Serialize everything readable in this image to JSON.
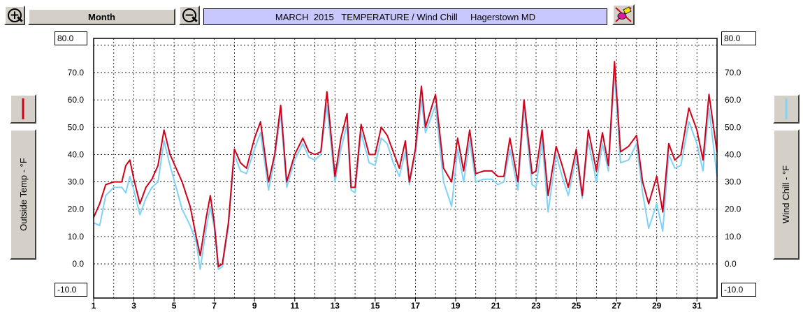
{
  "toolbar": {
    "zoom_in_icon": "zoom-in-magnifier",
    "zoom_out_icon": "zoom-out-magnifier",
    "period_label": "Month",
    "title": "MARCH  2015   TEMPERATURE / Wind Chill     Hagerstown MD",
    "title_bg": "#c8c8ff",
    "tool_icon": "eraser-pencil"
  },
  "left_axis": {
    "top_label": "80.0",
    "bottom_label": "-10.0",
    "button_label": "Outside Temp - °F",
    "color": "#d0021b"
  },
  "right_axis": {
    "top_label": "80.0",
    "bottom_label": "-10.0",
    "button_label": "Wind Chill - °F",
    "color": "#7fd3f7"
  },
  "chart_data": {
    "type": "line",
    "title": "MARCH  2015   TEMPERATURE / Wind Chill     Hagerstown MD",
    "xlabel": "",
    "ylabel": "Outside Temp - °F",
    "y2label": "Wind Chill - °F",
    "ylim": [
      -12.5,
      82.5
    ],
    "xlim": [
      1,
      32
    ],
    "grid": true,
    "y_ticks": [
      "80.0",
      "70.0",
      "60.0",
      "50.0",
      "40.0",
      "30.0",
      "20.0",
      "10.0",
      "0.0",
      "-10.0"
    ],
    "x_ticks": [
      "1",
      "3",
      "5",
      "7",
      "9",
      "11",
      "13",
      "15",
      "17",
      "19",
      "21",
      "23",
      "25",
      "27",
      "29",
      "31"
    ],
    "series": [
      {
        "name": "Outside Temp - °F",
        "color": "#d0021b",
        "x": [
          1,
          1.3,
          1.6,
          2,
          2.4,
          2.6,
          2.8,
          3,
          3.3,
          3.6,
          3.9,
          4.2,
          4.5,
          4.8,
          5.1,
          5.4,
          5.8,
          6.1,
          6.3,
          6.6,
          6.8,
          7,
          7.2,
          7.4,
          7.7,
          8,
          8.3,
          8.6,
          9,
          9.3,
          9.7,
          10,
          10.3,
          10.6,
          11,
          11.4,
          11.7,
          12,
          12.3,
          12.6,
          13,
          13.3,
          13.6,
          13.8,
          14,
          14.3,
          14.7,
          15,
          15.3,
          15.6,
          15.9,
          16.2,
          16.5,
          16.7,
          17,
          17.3,
          17.5,
          18,
          18.4,
          18.8,
          19.1,
          19.4,
          19.7,
          20,
          20.4,
          20.8,
          21.1,
          21.4,
          21.7,
          22.1,
          22.4,
          22.8,
          23,
          23.3,
          23.6,
          24,
          24.3,
          24.6,
          25,
          25.3,
          25.6,
          26,
          26.3,
          26.6,
          26.9,
          27.2,
          27.6,
          28,
          28.3,
          28.6,
          29,
          29.3,
          29.6,
          29.9,
          30.2,
          30.6,
          31,
          31.3,
          31.6,
          32
        ],
        "values": [
          17,
          22,
          29,
          30,
          30,
          36,
          38,
          31,
          22,
          28,
          31,
          36,
          49,
          40,
          35,
          30,
          21,
          10,
          3,
          17,
          25,
          15,
          -1,
          0,
          15,
          42,
          37,
          35,
          46,
          52,
          30,
          40,
          58,
          30,
          40,
          46,
          41,
          40,
          41,
          63,
          32,
          46,
          55,
          28,
          28,
          51,
          40,
          40,
          50,
          47,
          41,
          35,
          45,
          30,
          42,
          65,
          50,
          62,
          35,
          30,
          46,
          34,
          49,
          33,
          34,
          34,
          32,
          32,
          46,
          30,
          60,
          33,
          34,
          49,
          25,
          43,
          36,
          28,
          42,
          25,
          49,
          34,
          48,
          36,
          74,
          41,
          43,
          47,
          30,
          22,
          32,
          19,
          44,
          38,
          40,
          57,
          49,
          38,
          62,
          41
        ],
        "wind_chill_values": [
          15,
          14,
          25,
          28,
          28,
          26,
          32,
          27,
          18,
          24,
          28,
          30,
          45,
          36,
          28,
          20,
          14,
          8,
          -2,
          13,
          21,
          13,
          -2,
          -1,
          13,
          40,
          34,
          33,
          42,
          48,
          27,
          38,
          55,
          28,
          38,
          44,
          39,
          38,
          40,
          58,
          30,
          42,
          51,
          27,
          26,
          48,
          37,
          36,
          46,
          44,
          37,
          32,
          41,
          29,
          40,
          60,
          48,
          58,
          30,
          21,
          42,
          30,
          45,
          30,
          31,
          31,
          29,
          30,
          42,
          27,
          57,
          29,
          28,
          45,
          19,
          40,
          32,
          25,
          39,
          24,
          45,
          30,
          44,
          34,
          70,
          37,
          38,
          44,
          26,
          13,
          22,
          12,
          40,
          35,
          36,
          52,
          44,
          34,
          57,
          32
        ]
      },
      {
        "name": "Wind Chill - °F",
        "color": "#7fd3f7"
      }
    ]
  }
}
